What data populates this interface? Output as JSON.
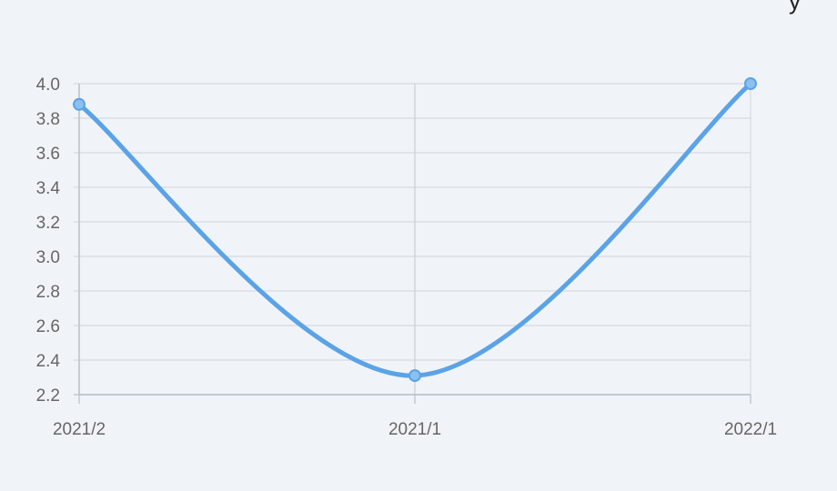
{
  "corner_text": "y",
  "colors": {
    "background": "#f0f4f8",
    "line": "#5ba3e6",
    "grid": "#d5dbe1",
    "axis": "#b8bfc6",
    "text": "#666666"
  },
  "chart_data": {
    "type": "line",
    "categories": [
      "2021/2",
      "2021/1",
      "2022/1"
    ],
    "series": [
      {
        "values": [
          3.88,
          2.31,
          4.0
        ]
      }
    ],
    "ylim": [
      2.2,
      4.0
    ],
    "yticks": [
      "2.2",
      "2.4",
      "2.6",
      "2.8",
      "3.0",
      "3.2",
      "3.4",
      "3.6",
      "3.8",
      "4.0"
    ],
    "smooth": true,
    "grid": true,
    "legend": "none"
  }
}
